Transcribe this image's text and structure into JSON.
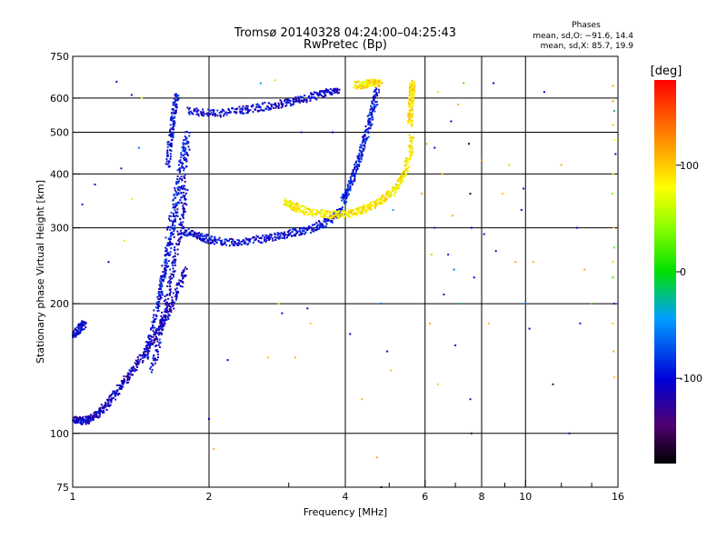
{
  "chart_data": {
    "type": "scatter",
    "title": "Tromsø 20140328 04:24:00–04:25:43",
    "subtitle": "RwPretec (Bp)",
    "xlabel": "Frequency [MHz]",
    "ylabel": "Stationary phase Virtual Height [km]",
    "x_scale": "log",
    "y_scale": "log",
    "xlim": [
      1,
      16
    ],
    "ylim": [
      75,
      750
    ],
    "x_ticks": [
      1,
      2,
      4,
      6,
      8,
      10,
      16
    ],
    "x_tick_labels": [
      "1",
      "2",
      "4",
      "6",
      "8",
      "10",
      "16"
    ],
    "x_minor_ticks": [
      3,
      5,
      7,
      9,
      12,
      14
    ],
    "y_ticks": [
      75,
      100,
      200,
      300,
      400,
      500,
      600,
      750
    ],
    "y_tick_labels": [
      "75",
      "100",
      "200",
      "300",
      "400",
      "500",
      "600",
      "750"
    ],
    "grid": true,
    "stats": {
      "title": "Phases",
      "line_o": "mean, sd,O: −91.6, 14.4",
      "line_x": "mean, sd,X:  85.7, 19.9"
    },
    "colorbar": {
      "label": "[deg]",
      "range": [
        -180,
        180
      ],
      "ticks": [
        100,
        0,
        -100
      ],
      "tick_labels": [
        "100",
        "0",
        "-100"
      ]
    },
    "series": [
      {
        "mode": "O",
        "mean_phase": -91.6,
        "traces": [
          {
            "x": [
              1.0,
              1.03,
              1.06,
              1.09,
              1.12,
              1.16,
              1.2,
              1.25,
              1.3,
              1.36,
              1.42,
              1.48,
              1.54,
              1.6,
              1.66,
              1.72,
              1.78
            ],
            "y": [
              108,
              107,
              107,
              108,
              110,
              113,
              118,
              125,
              132,
              140,
              150,
              160,
              172,
              185,
              200,
              220,
              240
            ],
            "phase": -110
          },
          {
            "x": [
              1.0,
              1.02,
              1.04,
              1.06
            ],
            "y": [
              168,
              172,
              176,
              180
            ],
            "phase": -100
          },
          {
            "x": [
              1.45,
              1.5,
              1.55,
              1.6,
              1.65,
              1.7,
              1.75,
              1.8
            ],
            "y": [
              150,
              175,
              205,
              240,
              280,
              330,
              390,
              470
            ],
            "phase": -100
          },
          {
            "x": [
              1.5,
              1.55,
              1.6,
              1.65,
              1.7,
              1.75,
              1.78
            ],
            "y": [
              140,
              165,
              195,
              230,
              270,
              320,
              380
            ],
            "phase": -105
          },
          {
            "x": [
              1.55,
              1.6,
              1.65,
              1.7,
              1.75,
              1.8
            ],
            "y": [
              200,
              250,
              310,
              370,
              440,
              500
            ],
            "phase": -95
          },
          {
            "x": [
              1.62,
              1.64,
              1.66,
              1.68,
              1.7
            ],
            "y": [
              420,
              470,
              520,
              570,
              620
            ],
            "phase": -100
          },
          {
            "x": [
              1.75,
              1.85,
              1.95,
              2.05,
              2.2,
              2.4,
              2.6,
              2.8,
              3.0,
              3.2,
              3.4,
              3.6,
              3.8,
              3.95
            ],
            "y": [
              295,
              290,
              285,
              280,
              278,
              279,
              282,
              286,
              290,
              295,
              300,
              308,
              318,
              330
            ],
            "phase": -100
          },
          {
            "x": [
              3.95,
              4.05,
              4.15,
              4.25,
              4.35,
              4.45,
              4.55,
              4.65,
              4.72
            ],
            "y": [
              345,
              365,
              390,
              420,
              455,
              495,
              540,
              590,
              630
            ],
            "phase": -95
          },
          {
            "x": [
              1.8,
              1.95,
              2.1,
              2.3,
              2.5,
              2.7,
              2.9,
              3.1,
              3.3,
              3.5,
              3.7,
              3.9
            ],
            "y": [
              560,
              555,
              552,
              560,
              568,
              575,
              583,
              590,
              600,
              612,
              622,
              632
            ],
            "phase": -105
          }
        ]
      },
      {
        "mode": "X",
        "mean_phase": 85.7,
        "traces": [
          {
            "x": [
              2.95,
              3.05,
              3.15,
              3.3,
              3.5,
              3.7,
              3.9,
              4.1,
              4.3,
              4.5,
              4.7,
              4.9,
              5.1,
              5.3,
              5.45,
              5.55,
              5.6
            ],
            "y": [
              345,
              338,
              333,
              328,
              324,
              322,
              322,
              324,
              328,
              334,
              342,
              352,
              365,
              385,
              410,
              445,
              490
            ],
            "phase": 85
          },
          {
            "x": [
              5.55,
              5.58,
              5.6,
              5.62,
              5.63
            ],
            "y": [
              520,
              560,
              600,
              630,
              650
            ],
            "phase": 90
          },
          {
            "x": [
              4.2,
              4.35,
              4.5,
              4.65,
              4.8
            ],
            "y": [
              642,
              645,
              648,
              650,
              652
            ],
            "phase": 90
          }
        ]
      }
    ],
    "noise_points": [
      {
        "x": 1.25,
        "y": 655,
        "phase": -110
      },
      {
        "x": 1.35,
        "y": 610,
        "phase": -100
      },
      {
        "x": 1.42,
        "y": 600,
        "phase": 80
      },
      {
        "x": 1.28,
        "y": 412,
        "phase": -90
      },
      {
        "x": 1.35,
        "y": 350,
        "phase": 90
      },
      {
        "x": 1.3,
        "y": 280,
        "phase": 60
      },
      {
        "x": 1.2,
        "y": 250,
        "phase": -100
      },
      {
        "x": 1.4,
        "y": 460,
        "phase": -60
      },
      {
        "x": 1.12,
        "y": 378,
        "phase": -110
      },
      {
        "x": 1.05,
        "y": 340,
        "phase": -90
      },
      {
        "x": 2.0,
        "y": 108,
        "phase": -100
      },
      {
        "x": 2.05,
        "y": 92,
        "phase": 110
      },
      {
        "x": 2.2,
        "y": 148,
        "phase": -100
      },
      {
        "x": 2.6,
        "y": 650,
        "phase": -40
      },
      {
        "x": 2.8,
        "y": 660,
        "phase": 50
      },
      {
        "x": 2.7,
        "y": 150,
        "phase": 100
      },
      {
        "x": 2.85,
        "y": 200,
        "phase": 60
      },
      {
        "x": 2.9,
        "y": 190,
        "phase": -110
      },
      {
        "x": 3.1,
        "y": 150,
        "phase": 110
      },
      {
        "x": 3.3,
        "y": 195,
        "phase": -100
      },
      {
        "x": 3.2,
        "y": 500,
        "phase": -90
      },
      {
        "x": 3.35,
        "y": 180,
        "phase": 100
      },
      {
        "x": 3.75,
        "y": 500,
        "phase": -100
      },
      {
        "x": 4.35,
        "y": 120,
        "phase": 110
      },
      {
        "x": 4.1,
        "y": 170,
        "phase": -100
      },
      {
        "x": 4.7,
        "y": 88,
        "phase": 110
      },
      {
        "x": 4.8,
        "y": 75,
        "phase": -130
      },
      {
        "x": 5.05,
        "y": 140,
        "phase": 100
      },
      {
        "x": 4.95,
        "y": 155,
        "phase": -100
      },
      {
        "x": 4.8,
        "y": 200,
        "phase": -60
      },
      {
        "x": 5.1,
        "y": 330,
        "phase": -40
      },
      {
        "x": 5.7,
        "y": 620,
        "phase": 90
      },
      {
        "x": 5.9,
        "y": 360,
        "phase": 110
      },
      {
        "x": 6.05,
        "y": 470,
        "phase": 40
      },
      {
        "x": 6.2,
        "y": 260,
        "phase": 110
      },
      {
        "x": 6.3,
        "y": 300,
        "phase": -90
      },
      {
        "x": 6.4,
        "y": 620,
        "phase": 90
      },
      {
        "x": 6.55,
        "y": 400,
        "phase": 110
      },
      {
        "x": 6.3,
        "y": 460,
        "phase": -100
      },
      {
        "x": 6.15,
        "y": 180,
        "phase": 110
      },
      {
        "x": 6.4,
        "y": 130,
        "phase": 100
      },
      {
        "x": 6.6,
        "y": 210,
        "phase": -100
      },
      {
        "x": 6.75,
        "y": 260,
        "phase": -90
      },
      {
        "x": 6.9,
        "y": 320,
        "phase": 110
      },
      {
        "x": 6.95,
        "y": 240,
        "phase": -60
      },
      {
        "x": 7.0,
        "y": 160,
        "phase": -100
      },
      {
        "x": 6.85,
        "y": 530,
        "phase": -100
      },
      {
        "x": 7.1,
        "y": 580,
        "phase": 110
      },
      {
        "x": 7.2,
        "y": 200,
        "phase": -30
      },
      {
        "x": 7.3,
        "y": 650,
        "phase": 20
      },
      {
        "x": 7.5,
        "y": 470,
        "phase": -160
      },
      {
        "x": 7.55,
        "y": 360,
        "phase": -160
      },
      {
        "x": 7.6,
        "y": 300,
        "phase": -100
      },
      {
        "x": 7.7,
        "y": 230,
        "phase": -100
      },
      {
        "x": 7.55,
        "y": 120,
        "phase": -130
      },
      {
        "x": 7.6,
        "y": 100,
        "phase": -150
      },
      {
        "x": 8.0,
        "y": 430,
        "phase": 120
      },
      {
        "x": 8.1,
        "y": 290,
        "phase": -100
      },
      {
        "x": 8.3,
        "y": 180,
        "phase": 100
      },
      {
        "x": 8.5,
        "y": 650,
        "phase": -100
      },
      {
        "x": 8.6,
        "y": 265,
        "phase": -120
      },
      {
        "x": 8.9,
        "y": 360,
        "phase": 100
      },
      {
        "x": 9.2,
        "y": 420,
        "phase": 50
      },
      {
        "x": 9.5,
        "y": 250,
        "phase": 110
      },
      {
        "x": 9.8,
        "y": 330,
        "phase": -90
      },
      {
        "x": 9.9,
        "y": 370,
        "phase": -110
      },
      {
        "x": 10.0,
        "y": 200,
        "phase": -60
      },
      {
        "x": 10.2,
        "y": 175,
        "phase": -100
      },
      {
        "x": 10.4,
        "y": 250,
        "phase": 110
      },
      {
        "x": 11.0,
        "y": 620,
        "phase": -100
      },
      {
        "x": 11.5,
        "y": 130,
        "phase": -150
      },
      {
        "x": 12.0,
        "y": 420,
        "phase": 110
      },
      {
        "x": 12.5,
        "y": 100,
        "phase": -130
      },
      {
        "x": 13.0,
        "y": 300,
        "phase": -100
      },
      {
        "x": 13.2,
        "y": 180,
        "phase": -90
      },
      {
        "x": 13.5,
        "y": 240,
        "phase": 110
      },
      {
        "x": 14.0,
        "y": 200,
        "phase": 20
      },
      {
        "x": 15.6,
        "y": 640,
        "phase": 110
      },
      {
        "x": 15.6,
        "y": 520,
        "phase": 100
      },
      {
        "x": 15.7,
        "y": 480,
        "phase": 80
      },
      {
        "x": 15.6,
        "y": 400,
        "phase": 60
      },
      {
        "x": 15.65,
        "y": 300,
        "phase": 110
      },
      {
        "x": 15.7,
        "y": 270,
        "phase": 30
      },
      {
        "x": 15.6,
        "y": 230,
        "phase": 20
      },
      {
        "x": 15.7,
        "y": 200,
        "phase": -90
      },
      {
        "x": 15.6,
        "y": 180,
        "phase": 100
      },
      {
        "x": 15.65,
        "y": 155,
        "phase": 110
      },
      {
        "x": 15.7,
        "y": 135,
        "phase": 100
      },
      {
        "x": 15.6,
        "y": 590,
        "phase": 120
      },
      {
        "x": 15.7,
        "y": 560,
        "phase": -20
      },
      {
        "x": 15.8,
        "y": 445,
        "phase": -100
      },
      {
        "x": 15.55,
        "y": 360,
        "phase": 40
      },
      {
        "x": 15.6,
        "y": 250,
        "phase": 100
      }
    ]
  }
}
